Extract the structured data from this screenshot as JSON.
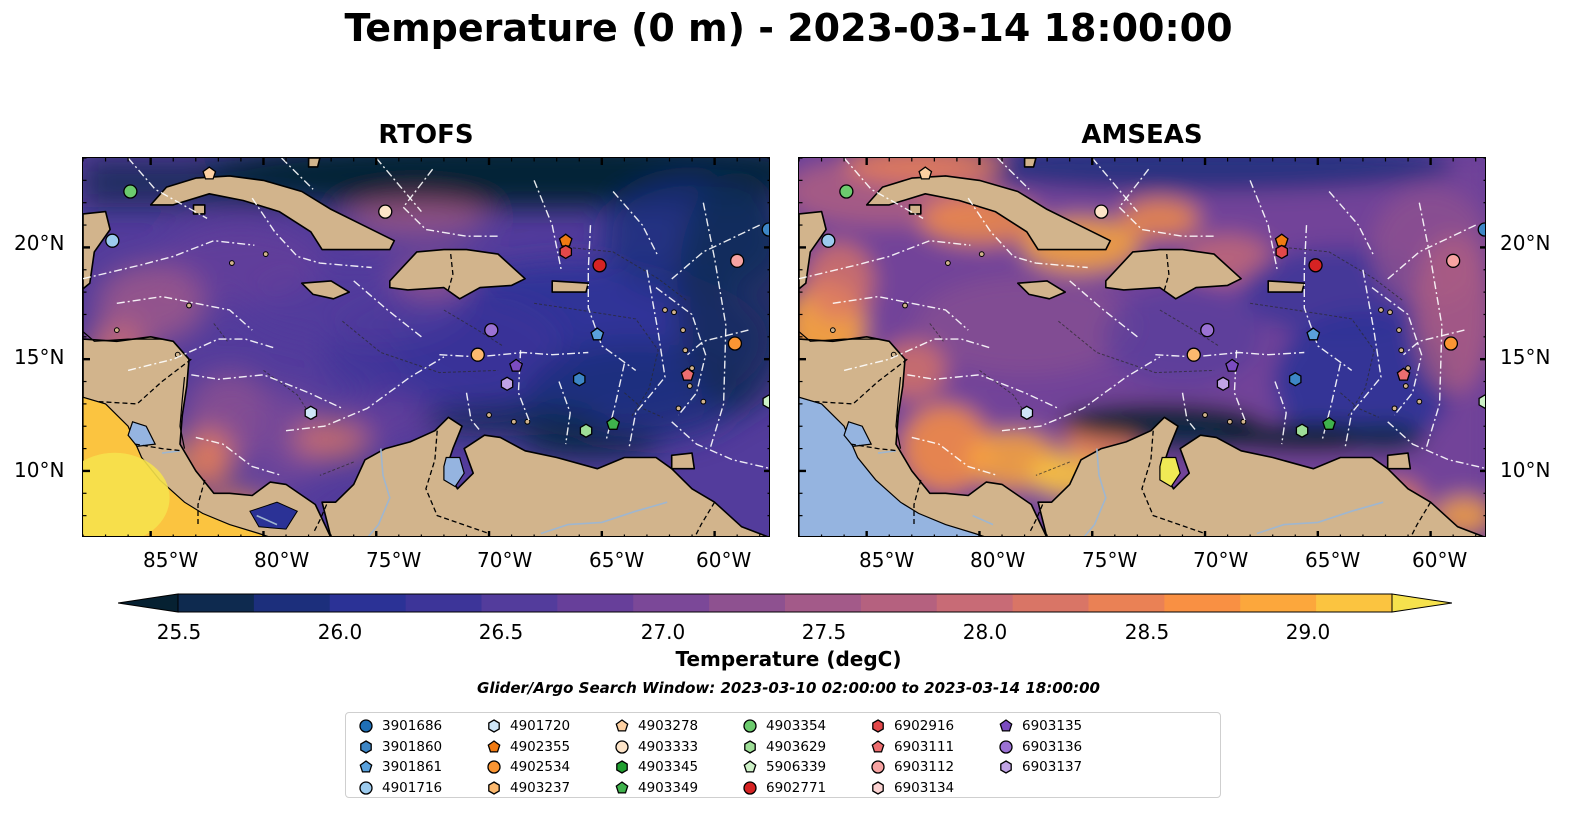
{
  "title": "Temperature (0 m) - 2023-03-14 18:00:00",
  "panels": [
    {
      "title": "RTOFS"
    },
    {
      "title": "AMSEAS"
    }
  ],
  "axes": {
    "lon_ticks": [
      "85°W",
      "80°W",
      "75°W",
      "70°W",
      "65°W",
      "60°W"
    ],
    "lat_ticks": [
      "20°N",
      "15°N",
      "10°N"
    ],
    "lon_range": [
      -88,
      -57.5
    ],
    "lat_range": [
      7,
      24
    ]
  },
  "colorbar": {
    "label": "Temperature (degC)",
    "ticks": [
      "25.5",
      "26.0",
      "26.5",
      "27.0",
      "27.5",
      "28.0",
      "28.5",
      "29.0"
    ],
    "range": [
      25.25,
      29.25
    ],
    "colors": [
      "#062132",
      "#0e2a4f",
      "#1c2f7c",
      "#2b3296",
      "#3d3599",
      "#533c9c",
      "#673f9a",
      "#7b4898",
      "#8e5190",
      "#a35a89",
      "#b5617f",
      "#c86b76",
      "#d97566",
      "#ea8155",
      "#f99043",
      "#fca73c",
      "#fbc440",
      "#f6e24d"
    ],
    "extend": "both"
  },
  "search_window": "Glider/Argo Search Window: 2023-03-10 02:00:00 to 2023-03-14 18:00:00",
  "legend": [
    {
      "id": "3901686",
      "shape": "circle",
      "color": "#1f6fb5"
    },
    {
      "id": "3901860",
      "shape": "hexagon",
      "color": "#3d86c6"
    },
    {
      "id": "3901861",
      "shape": "pentagon",
      "color": "#5aa1dc"
    },
    {
      "id": "4901716",
      "shape": "circle",
      "color": "#9ccbee"
    },
    {
      "id": "4901720",
      "shape": "hexagon",
      "color": "#cfe6f8"
    },
    {
      "id": "4902355",
      "shape": "pentagon",
      "color": "#f07a12"
    },
    {
      "id": "4902534",
      "shape": "circle",
      "color": "#fa9533"
    },
    {
      "id": "4903237",
      "shape": "hexagon",
      "color": "#fbb86e"
    },
    {
      "id": "4903278",
      "shape": "pentagon",
      "color": "#fdd0a2"
    },
    {
      "id": "4903333",
      "shape": "circle",
      "color": "#fde4c8"
    },
    {
      "id": "4903345",
      "shape": "hexagon",
      "color": "#1f9e2f"
    },
    {
      "id": "4903349",
      "shape": "pentagon",
      "color": "#3fb24c"
    },
    {
      "id": "4903354",
      "shape": "circle",
      "color": "#6ccb6e"
    },
    {
      "id": "4903629",
      "shape": "hexagon",
      "color": "#9ede97"
    },
    {
      "id": "5906339",
      "shape": "pentagon",
      "color": "#cdf1c7"
    },
    {
      "id": "6902771",
      "shape": "circle",
      "color": "#d62323"
    },
    {
      "id": "6902916",
      "shape": "hexagon",
      "color": "#e2484a"
    },
    {
      "id": "6903111",
      "shape": "pentagon",
      "color": "#ee6e70"
    },
    {
      "id": "6903112",
      "shape": "circle",
      "color": "#f7a3a2"
    },
    {
      "id": "6903134",
      "shape": "hexagon",
      "color": "#fcd3d2"
    },
    {
      "id": "6903135",
      "shape": "pentagon",
      "color": "#7b4cc0"
    },
    {
      "id": "6903136",
      "shape": "circle",
      "color": "#9b72d4"
    },
    {
      "id": "6903137",
      "shape": "hexagon",
      "color": "#c1a4e6"
    }
  ],
  "floats": [
    {
      "shape": "circle",
      "color": "#6ccb6e",
      "lon": -85.9,
      "lat": 22.5
    },
    {
      "shape": "circle",
      "color": "#9ccbee",
      "lon": -86.7,
      "lat": 20.3
    },
    {
      "shape": "pentagon",
      "color": "#fdd0a2",
      "lon": -82.4,
      "lat": 23.3
    },
    {
      "shape": "circle",
      "color": "#fde4c8",
      "lon": -74.6,
      "lat": 21.6
    },
    {
      "shape": "pentagon",
      "color": "#f07a12",
      "lon": -66.6,
      "lat": 20.3
    },
    {
      "shape": "hexagon",
      "color": "#e2484a",
      "lon": -66.6,
      "lat": 19.8
    },
    {
      "shape": "circle",
      "color": "#d62323",
      "lon": -65.1,
      "lat": 19.2
    },
    {
      "shape": "circle",
      "color": "#3d86c6",
      "lon": -57.6,
      "lat": 20.8
    },
    {
      "shape": "circle",
      "color": "#f7a3a2",
      "lon": -59.0,
      "lat": 19.4
    },
    {
      "shape": "pentagon",
      "color": "#5aa1dc",
      "lon": -65.2,
      "lat": 16.1
    },
    {
      "shape": "circle",
      "color": "#fa9533",
      "lon": -59.1,
      "lat": 15.7
    },
    {
      "shape": "circle",
      "color": "#9b72d4",
      "lon": -69.9,
      "lat": 16.3
    },
    {
      "shape": "circle",
      "color": "#fbb86e",
      "lon": -70.5,
      "lat": 15.2
    },
    {
      "shape": "pentagon",
      "color": "#7b4cc0",
      "lon": -68.8,
      "lat": 14.7
    },
    {
      "shape": "hexagon",
      "color": "#c1a4e6",
      "lon": -69.2,
      "lat": 13.9
    },
    {
      "shape": "hexagon",
      "color": "#3d86c6",
      "lon": -66.0,
      "lat": 14.1
    },
    {
      "shape": "pentagon",
      "color": "#ee6e70",
      "lon": -61.2,
      "lat": 14.3
    },
    {
      "shape": "hexagon",
      "color": "#cfe6f8",
      "lon": -77.9,
      "lat": 12.6
    },
    {
      "shape": "hexagon",
      "color": "#9ede97",
      "lon": -65.7,
      "lat": 11.8
    },
    {
      "shape": "pentagon",
      "color": "#3fb24c",
      "lon": -64.5,
      "lat": 12.1
    },
    {
      "shape": "hexagon",
      "color": "#cdf1c7",
      "lon": -57.6,
      "lat": 13.1
    }
  ]
}
